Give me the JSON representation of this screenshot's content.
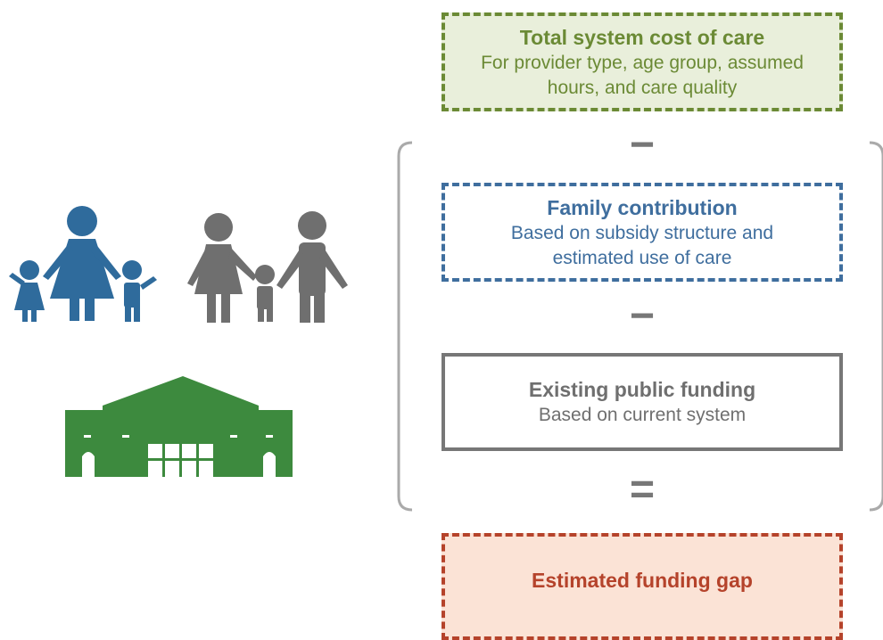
{
  "boxes": [
    {
      "title": "Total system cost of care",
      "description": [
        "For provider type, age group, assumed",
        "hours, and care quality"
      ]
    },
    {
      "title": "Family contribution",
      "description": [
        "Based on subsidy structure and",
        "estimated use of care"
      ]
    },
    {
      "title": "Existing public funding",
      "description": [
        "Based on current system"
      ]
    },
    {
      "title": "Estimated funding gap",
      "description": []
    }
  ],
  "operators": [
    "−",
    "−",
    "="
  ]
}
